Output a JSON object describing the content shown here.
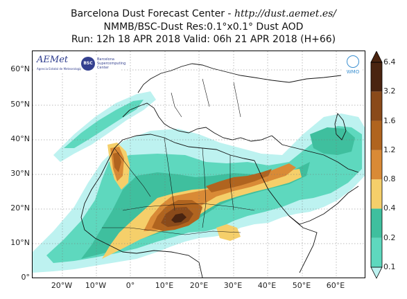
{
  "header": {
    "line1_prefix": "Barcelona Dust Forecast Center - ",
    "line1_url": "http://dust.aemet.es/",
    "line2": "NMMB/BSC-Dust   Res:0.1°x0.1°   Dust AOD",
    "line3": "Run: 12h 18 APR 2018   Valid: 06h 21 APR 2018 (H+66)"
  },
  "axes": {
    "lat_labels": [
      "60°N",
      "50°N",
      "40°N",
      "30°N",
      "20°N",
      "10°N",
      "0°"
    ],
    "lon_labels": [
      "20°W",
      "10°W",
      "0°",
      "10°E",
      "20°E",
      "30°E",
      "40°E",
      "50°E",
      "60°E"
    ]
  },
  "colorbar": {
    "levels": [
      "0.1",
      "0.2",
      "0.4",
      "0.8",
      "1.2",
      "1.6",
      "3.2",
      "6.4"
    ],
    "colors": [
      "#bdf2f0",
      "#5ed8be",
      "#3fbf9e",
      "#f5cf6a",
      "#d98a36",
      "#b0641f",
      "#8a4a1a",
      "#4a2410"
    ]
  },
  "logos": {
    "aemet": "AEMet",
    "aemet_sub": "Agencia Estatal de Meteorología",
    "bsc": "BSC",
    "bsc_sub1": "Barcelona",
    "bsc_sub2": "Supercomputing",
    "bsc_sub3": "Center",
    "wmo": "WMO"
  }
}
